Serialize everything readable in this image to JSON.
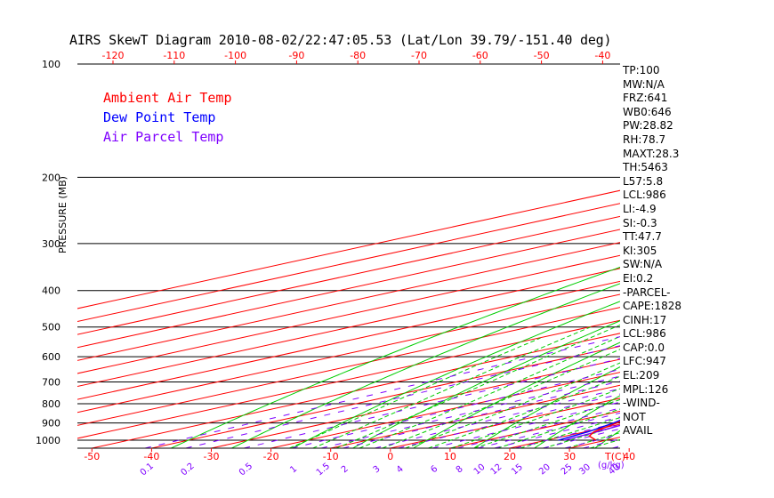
{
  "title": "AIRS SkewT Diagram 2010-08-02/22:47:05.53 (Lat/Lon 39.79/-151.40 deg)",
  "legend": [
    {
      "label": "Ambient Air Temp",
      "color": "#ff0000"
    },
    {
      "label": "Dew Point Temp",
      "color": "#0000ff"
    },
    {
      "label": "Air Parcel Temp",
      "color": "#7f00ff"
    }
  ],
  "stats": [
    "TP:100",
    "MW:N/A",
    "FRZ:641",
    "WB0:646",
    "PW:28.82",
    "RH:78.7",
    "MAXT:28.3",
    "TH:5463",
    "L57:5.8",
    "LCL:986",
    "LI:-4.9",
    "SI:-0.3",
    "TT:47.7",
    "KI:305",
    "SW:N/A",
    "EI:0.2",
    "-PARCEL-",
    "CAPE:1828",
    "CINH:17",
    "LCL:986",
    "CAP:0.0",
    "LFC:947",
    "EL:209",
    "MPL:126",
    "-WIND-",
    "NOT",
    "AVAIL"
  ],
  "colors": {
    "isotherm": "#ff0000",
    "dry_adiabat": "#00cc00",
    "moist_adiabat": "#00cc00",
    "mixing_ratio": "#7f00ff",
    "ambient": "#ff0000",
    "dewpoint": "#0000ff",
    "parcel": "#7f00ff",
    "hatch": "#7f00ff"
  },
  "chart_data": {
    "type": "line",
    "title": "AIRS SkewT Diagram 2010-08-02/22:47:05.53 (Lat/Lon 39.79/-151.40 deg)",
    "ylabel": "PRESSURE (MB)",
    "xlabel": "T(C)",
    "ylim": [
      1050,
      100
    ],
    "y_scale": "log",
    "pressure_ticks": [
      100,
      200,
      300,
      400,
      500,
      600,
      700,
      800,
      900,
      1000
    ],
    "bottom_temp_ticks": [
      -50,
      -40,
      -30,
      -20,
      -10,
      0,
      10,
      20,
      30,
      40
    ],
    "top_temp_ticks": [
      -120,
      -110,
      -100,
      -90,
      -80,
      -70,
      -60,
      -50,
      -40
    ],
    "mixing_ratio_labels": [
      "0.1",
      "0.2",
      "0.5",
      "1",
      "1.5",
      "2",
      "3",
      "4",
      "6",
      "8",
      "10",
      "12",
      "15",
      "20",
      "25",
      "30",
      "40"
    ],
    "mixing_ratio_unit": "(g/kg)",
    "series": [
      {
        "name": "Ambient Air Temp",
        "points": [
          [
            1000,
            28.3
          ],
          [
            975,
            24
          ],
          [
            950,
            21.5
          ],
          [
            900,
            18.5
          ],
          [
            850,
            15
          ],
          [
            800,
            12
          ],
          [
            700,
            5.5
          ],
          [
            600,
            -2
          ],
          [
            500,
            -11
          ],
          [
            400,
            -22
          ],
          [
            300,
            -38
          ],
          [
            250,
            -48
          ],
          [
            220,
            -56
          ],
          [
            200,
            -60
          ],
          [
            100,
            -77
          ]
        ]
      },
      {
        "name": "Dew Point Temp",
        "points": [
          [
            1000,
            22
          ],
          [
            950,
            20.5
          ],
          [
            900,
            18
          ],
          [
            850,
            14.5
          ],
          [
            800,
            11
          ],
          [
            700,
            0
          ],
          [
            600,
            -10
          ],
          [
            500,
            -20
          ],
          [
            400,
            -32
          ],
          [
            300,
            -47
          ],
          [
            200,
            -63
          ],
          [
            170,
            -70
          ],
          [
            150,
            -74
          ],
          [
            100,
            -75
          ]
        ]
      },
      {
        "name": "Air Parcel Temp",
        "points": [
          [
            1000,
            23
          ],
          [
            950,
            22
          ],
          [
            900,
            20.5
          ],
          [
            850,
            19
          ],
          [
            800,
            17.5
          ],
          [
            700,
            13
          ],
          [
            600,
            7.5
          ],
          [
            500,
            1
          ],
          [
            400,
            -9
          ],
          [
            300,
            -28
          ],
          [
            250,
            -40
          ],
          [
            220,
            -50
          ],
          [
            200,
            -60
          ],
          [
            150,
            -75
          ],
          [
            100,
            -95
          ]
        ]
      }
    ]
  }
}
